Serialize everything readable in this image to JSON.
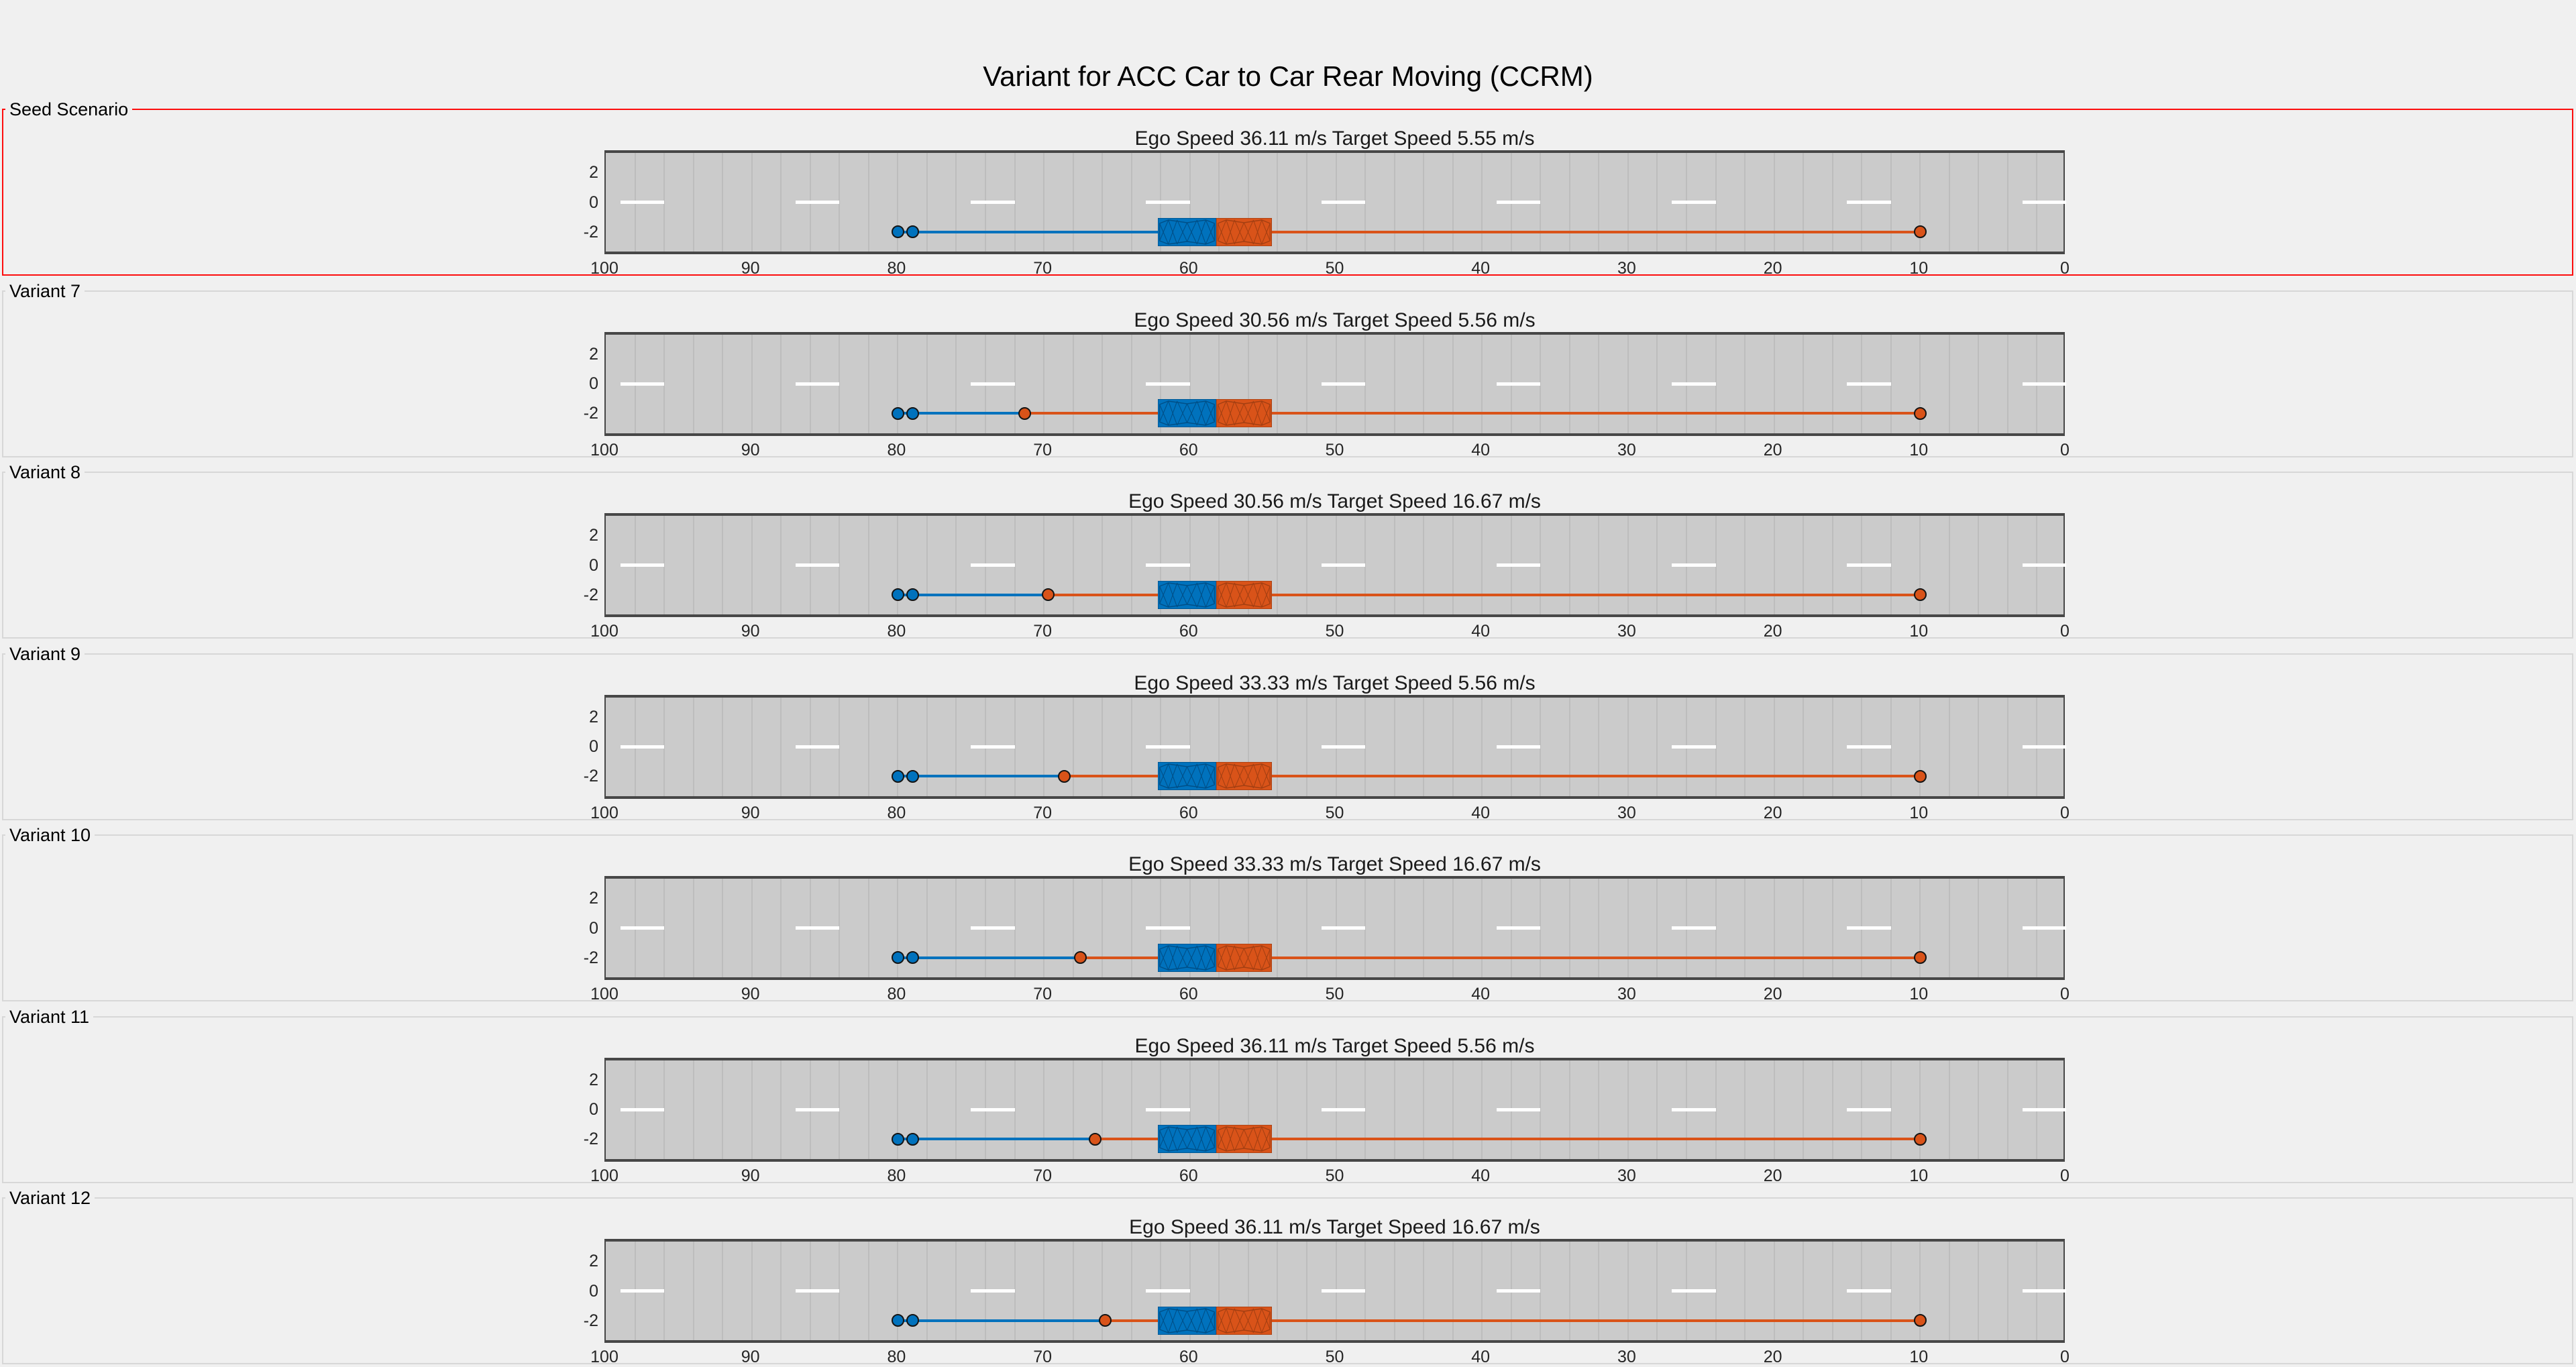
{
  "figure_title": "Variant for ACC Car to Car Rear Moving (CCRM)",
  "colors": {
    "ego": "#0072BD",
    "ego_mesh": "#004f87",
    "target": "#D95319",
    "target_mesh": "#a33f12",
    "road": "#cbcbcb",
    "road_gridline": "#bdbdbd",
    "road_edge": "#474747",
    "lane_marking": "#ffffff",
    "seed_panel_border": "#fd0d0d",
    "variant_panel_border": "#d7d7d7",
    "figure_background": "#f0f0f0"
  },
  "axis": {
    "x_ticks": [
      100,
      90,
      80,
      70,
      60,
      50,
      40,
      30,
      20,
      10,
      0
    ],
    "y_ticks": [
      2,
      0,
      -2
    ],
    "x_direction": "reversed",
    "xlim": [
      100,
      0
    ],
    "ylim": [
      -3.5,
      3.5
    ]
  },
  "road": {
    "length_m": 100,
    "half_width_m": 3.5,
    "lane_y": -2,
    "gridline_spacing_m": 2,
    "dash_length_m": 3,
    "dash_gap_m": 9,
    "first_dash_start_m": 99
  },
  "panels": [
    {
      "label": "Seed Scenario",
      "title": "Ego Speed 36.11 m/s Target Speed 5.55 m/s",
      "ego_speed_mps": 36.11,
      "target_speed_mps": 5.55,
      "highlight": true,
      "ego_waypoints_m": [
        80,
        79
      ],
      "ego_vehicle_m": [
        62.2,
        58.2
      ],
      "target_vehicle_m": [
        58.2,
        54.4
      ],
      "target_mid_waypoint_m": null,
      "target_end_waypoint_m": 10
    },
    {
      "label": "Variant 7",
      "title": "Ego Speed 30.56 m/s Target Speed 5.56 m/s",
      "ego_speed_mps": 30.56,
      "target_speed_mps": 5.56,
      "highlight": false,
      "ego_waypoints_m": [
        80,
        79
      ],
      "ego_vehicle_m": [
        62.2,
        58.2
      ],
      "target_vehicle_m": [
        58.2,
        54.4
      ],
      "target_mid_waypoint_m": 71.3,
      "target_end_waypoint_m": 10
    },
    {
      "label": "Variant 8",
      "title": "Ego Speed 30.56 m/s Target Speed 16.67 m/s",
      "ego_speed_mps": 30.56,
      "target_speed_mps": 16.67,
      "highlight": false,
      "ego_waypoints_m": [
        80,
        79
      ],
      "ego_vehicle_m": [
        62.2,
        58.2
      ],
      "target_vehicle_m": [
        58.2,
        54.4
      ],
      "target_mid_waypoint_m": 69.7,
      "target_end_waypoint_m": 10
    },
    {
      "label": "Variant 9",
      "title": "Ego Speed 33.33 m/s Target Speed 5.56 m/s",
      "ego_speed_mps": 33.33,
      "target_speed_mps": 5.56,
      "highlight": false,
      "ego_waypoints_m": [
        80,
        79
      ],
      "ego_vehicle_m": [
        62.2,
        58.2
      ],
      "target_vehicle_m": [
        58.2,
        54.4
      ],
      "target_mid_waypoint_m": 68.6,
      "target_end_waypoint_m": 10
    },
    {
      "label": "Variant 10",
      "title": "Ego Speed 33.33 m/s Target Speed 16.67 m/s",
      "ego_speed_mps": 33.33,
      "target_speed_mps": 16.67,
      "highlight": false,
      "ego_waypoints_m": [
        80,
        79
      ],
      "ego_vehicle_m": [
        62.2,
        58.2
      ],
      "target_vehicle_m": [
        58.2,
        54.4
      ],
      "target_mid_waypoint_m": 67.5,
      "target_end_waypoint_m": 10
    },
    {
      "label": "Variant 11",
      "title": "Ego Speed 36.11 m/s Target Speed 5.56 m/s",
      "ego_speed_mps": 36.11,
      "target_speed_mps": 5.56,
      "highlight": false,
      "ego_waypoints_m": [
        80,
        79
      ],
      "ego_vehicle_m": [
        62.2,
        58.2
      ],
      "target_vehicle_m": [
        58.2,
        54.4
      ],
      "target_mid_waypoint_m": 66.5,
      "target_end_waypoint_m": 10
    },
    {
      "label": "Variant 12",
      "title": "Ego Speed 36.11 m/s Target Speed 16.67 m/s",
      "ego_speed_mps": 36.11,
      "target_speed_mps": 16.67,
      "highlight": false,
      "ego_waypoints_m": [
        80,
        79
      ],
      "ego_vehicle_m": [
        62.2,
        58.2
      ],
      "target_vehicle_m": [
        58.2,
        54.4
      ],
      "target_mid_waypoint_m": 65.8,
      "target_end_waypoint_m": 10
    }
  ],
  "chart_data": {
    "type": "scatter",
    "title": "Variant for ACC Car to Car Rear Moving (CCRM)",
    "xlabel": "",
    "ylabel": "",
    "x_ticks": [
      100,
      90,
      80,
      70,
      60,
      50,
      40,
      30,
      20,
      10,
      0
    ],
    "y_ticks": [
      2,
      0,
      -2
    ],
    "xlim": [
      100,
      0
    ],
    "ylim": [
      -3.5,
      3.5
    ],
    "grid": "vertical-road-sections-every-2m",
    "legend_position": "none",
    "subplots": [
      {
        "panel": "Seed Scenario",
        "title": "Ego Speed 36.11 m/s Target Speed 5.55 m/s",
        "series": [
          {
            "name": "ego-waypoints",
            "color": "#0072BD",
            "x": [
              80,
              79
            ],
            "y": [
              -2,
              -2
            ],
            "line_extends_to_x": 62.2
          },
          {
            "name": "target-waypoints",
            "color": "#D95319",
            "x": [
              10
            ],
            "y": [
              -2
            ],
            "line_extends_from_x": 54.4
          }
        ],
        "vehicles": [
          {
            "name": "ego-vehicle",
            "color": "#0072BD",
            "x_span": [
              62.2,
              58.2
            ],
            "y": -2
          },
          {
            "name": "target-vehicle",
            "color": "#D95319",
            "x_span": [
              58.2,
              54.4
            ],
            "y": -2
          }
        ]
      },
      {
        "panel": "Variant 7",
        "title": "Ego Speed 30.56 m/s Target Speed 5.56 m/s",
        "series": [
          {
            "name": "ego-waypoints",
            "color": "#0072BD",
            "x": [
              80,
              79
            ],
            "y": [
              -2,
              -2
            ],
            "line_extends_to_x": 71.3
          },
          {
            "name": "target-waypoints",
            "color": "#D95319",
            "x": [
              71.3,
              10
            ],
            "y": [
              -2,
              -2
            ]
          }
        ],
        "vehicles": [
          {
            "name": "ego-vehicle",
            "color": "#0072BD",
            "x_span": [
              62.2,
              58.2
            ],
            "y": -2
          },
          {
            "name": "target-vehicle",
            "color": "#D95319",
            "x_span": [
              58.2,
              54.4
            ],
            "y": -2
          }
        ]
      },
      {
        "panel": "Variant 8",
        "title": "Ego Speed 30.56 m/s Target Speed 16.67 m/s",
        "series": [
          {
            "name": "ego-waypoints",
            "color": "#0072BD",
            "x": [
              80,
              79
            ],
            "y": [
              -2,
              -2
            ],
            "line_extends_to_x": 69.7
          },
          {
            "name": "target-waypoints",
            "color": "#D95319",
            "x": [
              69.7,
              10
            ],
            "y": [
              -2,
              -2
            ]
          }
        ],
        "vehicles": [
          {
            "name": "ego-vehicle",
            "color": "#0072BD",
            "x_span": [
              62.2,
              58.2
            ],
            "y": -2
          },
          {
            "name": "target-vehicle",
            "color": "#D95319",
            "x_span": [
              58.2,
              54.4
            ],
            "y": -2
          }
        ]
      },
      {
        "panel": "Variant 9",
        "title": "Ego Speed 33.33 m/s Target Speed 5.56 m/s",
        "series": [
          {
            "name": "ego-waypoints",
            "color": "#0072BD",
            "x": [
              80,
              79
            ],
            "y": [
              -2,
              -2
            ],
            "line_extends_to_x": 68.6
          },
          {
            "name": "target-waypoints",
            "color": "#D95319",
            "x": [
              68.6,
              10
            ],
            "y": [
              -2,
              -2
            ]
          }
        ],
        "vehicles": [
          {
            "name": "ego-vehicle",
            "color": "#0072BD",
            "x_span": [
              62.2,
              58.2
            ],
            "y": -2
          },
          {
            "name": "target-vehicle",
            "color": "#D95319",
            "x_span": [
              58.2,
              54.4
            ],
            "y": -2
          }
        ]
      },
      {
        "panel": "Variant 10",
        "title": "Ego Speed 33.33 m/s Target Speed 16.67 m/s",
        "series": [
          {
            "name": "ego-waypoints",
            "color": "#0072BD",
            "x": [
              80,
              79
            ],
            "y": [
              -2,
              -2
            ],
            "line_extends_to_x": 67.5
          },
          {
            "name": "target-waypoints",
            "color": "#D95319",
            "x": [
              67.5,
              10
            ],
            "y": [
              -2,
              -2
            ]
          }
        ],
        "vehicles": [
          {
            "name": "ego-vehicle",
            "color": "#0072BD",
            "x_span": [
              62.2,
              58.2
            ],
            "y": -2
          },
          {
            "name": "target-vehicle",
            "color": "#D95319",
            "x_span": [
              58.2,
              54.4
            ],
            "y": -2
          }
        ]
      },
      {
        "panel": "Variant 11",
        "title": "Ego Speed 36.11 m/s Target Speed 5.56 m/s",
        "series": [
          {
            "name": "ego-waypoints",
            "color": "#0072BD",
            "x": [
              80,
              79
            ],
            "y": [
              -2,
              -2
            ],
            "line_extends_to_x": 66.5
          },
          {
            "name": "target-waypoints",
            "color": "#D95319",
            "x": [
              66.5,
              10
            ],
            "y": [
              -2,
              -2
            ]
          }
        ],
        "vehicles": [
          {
            "name": "ego-vehicle",
            "color": "#0072BD",
            "x_span": [
              62.2,
              58.2
            ],
            "y": -2
          },
          {
            "name": "target-vehicle",
            "color": "#D95319",
            "x_span": [
              58.2,
              54.4
            ],
            "y": -2
          }
        ]
      },
      {
        "panel": "Variant 12",
        "title": "Ego Speed 36.11 m/s Target Speed 16.67 m/s",
        "series": [
          {
            "name": "ego-waypoints",
            "color": "#0072BD",
            "x": [
              80,
              79
            ],
            "y": [
              -2,
              -2
            ],
            "line_extends_to_x": 65.8
          },
          {
            "name": "target-waypoints",
            "color": "#D95319",
            "x": [
              65.8,
              10
            ],
            "y": [
              -2,
              -2
            ]
          }
        ],
        "vehicles": [
          {
            "name": "ego-vehicle",
            "color": "#0072BD",
            "x_span": [
              62.2,
              58.2
            ],
            "y": -2
          },
          {
            "name": "target-vehicle",
            "color": "#D95319",
            "x_span": [
              58.2,
              54.4
            ],
            "y": -2
          }
        ]
      }
    ]
  }
}
